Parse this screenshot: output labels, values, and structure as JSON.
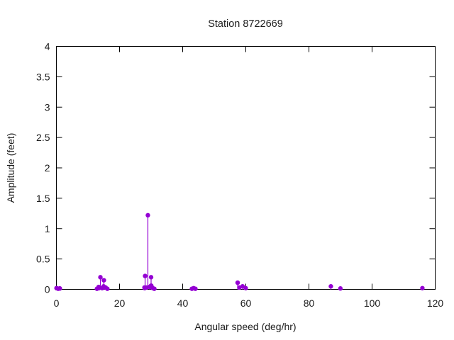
{
  "chart_data": {
    "type": "scatter",
    "style": "impulses-with-points",
    "title": "Station 8722669",
    "xlabel": "Angular speed (deg/hr)",
    "ylabel": "Amplitude (feet)",
    "xlim": [
      0,
      120
    ],
    "ylim": [
      0,
      4
    ],
    "grid": false,
    "legend": "none",
    "xticks": {
      "values": [
        0,
        20,
        40,
        60,
        80,
        100,
        120
      ],
      "labels": [
        "0",
        "20",
        "40",
        "60",
        "80",
        "100",
        "120"
      ]
    },
    "yticks": {
      "values": [
        0,
        0.5,
        1,
        1.5,
        2,
        2.5,
        3,
        3.5,
        4
      ],
      "labels": [
        "0",
        "0.5",
        "1",
        "1.5",
        "2",
        "2.5",
        "3",
        "3.5",
        "4"
      ]
    },
    "series": [
      {
        "name": "constituent-amplitudes",
        "color": "#9400d3",
        "points": [
          [
            0.04,
            0.02
          ],
          [
            0.09,
            0.02
          ],
          [
            0.55,
            0.01
          ],
          [
            1.02,
            0.015
          ],
          [
            1.1,
            0.015
          ],
          [
            12.85,
            0.01
          ],
          [
            13.4,
            0.04
          ],
          [
            13.47,
            0.02
          ],
          [
            13.94,
            0.2
          ],
          [
            14.49,
            0.02
          ],
          [
            14.96,
            0.05
          ],
          [
            15.04,
            0.15
          ],
          [
            15.59,
            0.03
          ],
          [
            16.14,
            0.01
          ],
          [
            27.9,
            0.03
          ],
          [
            27.97,
            0.02
          ],
          [
            28.1,
            0.22
          ],
          [
            28.51,
            0.03
          ],
          [
            28.98,
            1.22
          ],
          [
            29.53,
            0.04
          ],
          [
            29.96,
            0.06
          ],
          [
            30.0,
            0.2
          ],
          [
            30.08,
            0.06
          ],
          [
            30.54,
            0.02
          ],
          [
            31.02,
            0.01
          ],
          [
            42.93,
            0.01
          ],
          [
            43.48,
            0.02
          ],
          [
            44.03,
            0.01
          ],
          [
            57.42,
            0.11
          ],
          [
            57.97,
            0.03
          ],
          [
            58.98,
            0.05
          ],
          [
            59.97,
            0.02
          ],
          [
            86.95,
            0.05
          ],
          [
            89.97,
            0.015
          ],
          [
            115.94,
            0.02
          ]
        ]
      }
    ]
  }
}
